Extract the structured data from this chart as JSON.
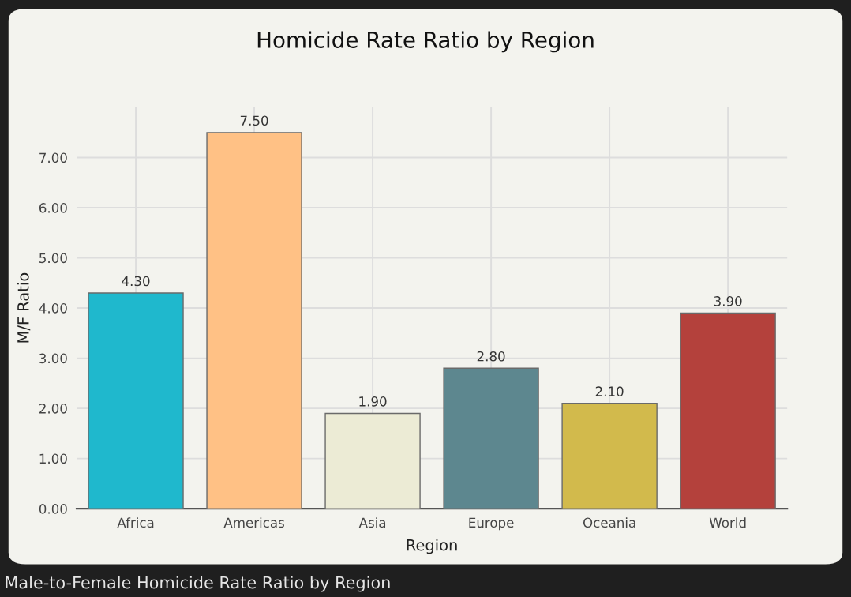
{
  "chart_data": {
    "type": "bar",
    "title": "Homicide Rate Ratio by Region",
    "xlabel": "Region",
    "ylabel": "M/F Ratio",
    "categories": [
      "Africa",
      "Americas",
      "Asia",
      "Europe",
      "Oceania",
      "World"
    ],
    "values": [
      4.3,
      7.5,
      1.9,
      2.8,
      2.1,
      3.9
    ],
    "colors": [
      "#1fb8cd",
      "#ffc185",
      "#eceBd5",
      "#5d878f",
      "#d2ba4c",
      "#b4413c"
    ],
    "value_labels": [
      "4.30",
      "7.50",
      "1.90",
      "2.80",
      "2.10",
      "3.90"
    ],
    "ylim": [
      0,
      8
    ],
    "yticks": [
      {
        "value": 0,
        "label": "0.00"
      },
      {
        "value": 1,
        "label": "1.00"
      },
      {
        "value": 2,
        "label": "2.00"
      },
      {
        "value": 3,
        "label": "3.00"
      },
      {
        "value": 4,
        "label": "4.00"
      },
      {
        "value": 5,
        "label": "5.00"
      },
      {
        "value": 6,
        "label": "6.00"
      },
      {
        "value": 7,
        "label": "7.00"
      }
    ],
    "grid": true,
    "annotations": [
      "Male-to-Female Homicide Rate Ratio by Region"
    ]
  }
}
